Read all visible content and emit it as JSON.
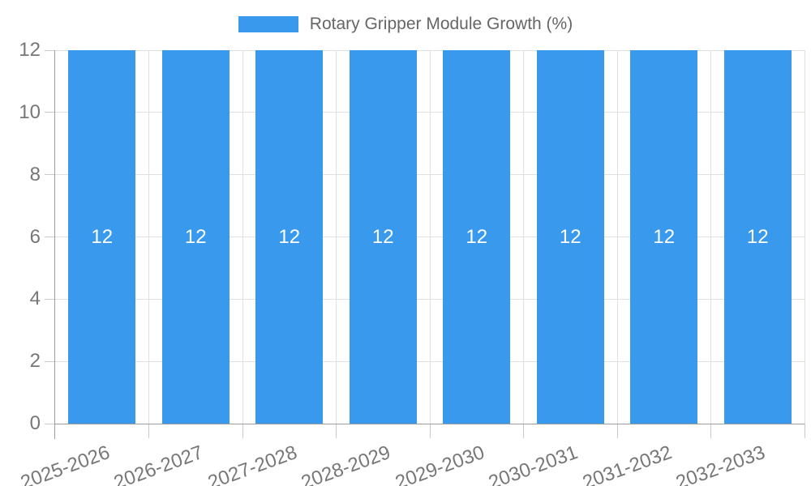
{
  "legend": {
    "position": "top",
    "items": [
      {
        "label": "Rotary Gripper Module Growth (%)",
        "color": "#3999ec"
      }
    ]
  },
  "chart_data": {
    "type": "bar",
    "title": "",
    "xlabel": "",
    "ylabel": "",
    "categories": [
      "2025-2026",
      "2026-2027",
      "2027-2028",
      "2028-2029",
      "2029-2030",
      "2030-2031",
      "2031-2032",
      "2032-2033"
    ],
    "series": [
      {
        "name": "Rotary Gripper Module Growth (%)",
        "values": [
          12,
          12,
          12,
          12,
          12,
          12,
          12,
          12
        ]
      }
    ],
    "bar_value_labels": [
      "12",
      "12",
      "12",
      "12",
      "12",
      "12",
      "12",
      "12"
    ],
    "ylim": [
      0,
      12
    ],
    "yticks": [
      0,
      2,
      4,
      6,
      8,
      10,
      12
    ],
    "grid": true,
    "legend_position": "top",
    "x_label_rotation_deg": -20,
    "colors": {
      "bar": "#3999ec",
      "bar_label": "#ffffff",
      "grid": "#e0e0e0",
      "tick_mark": "#c9c9c9",
      "axis_line": "#9d9d9d",
      "tick_text": "#777777",
      "legend_text": "#666666",
      "background": "#ffffff"
    }
  }
}
